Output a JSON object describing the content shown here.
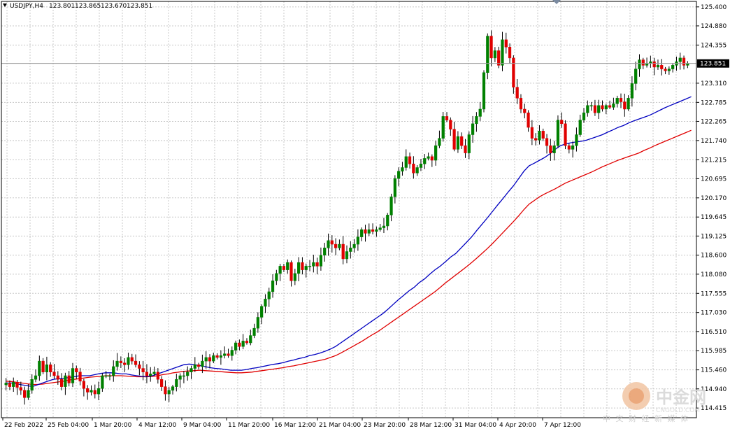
{
  "chart_data": {
    "type": "candlestick",
    "symbol": "USDJPY,H4",
    "ohlc_header": [
      "123.801",
      "123.865",
      "123.670",
      "123.851"
    ],
    "current_price": 123.851,
    "current_price_label": "123.851",
    "ylim": [
      114.15,
      125.55
    ],
    "y_ticks": [
      "125.400",
      "124.880",
      "124.355",
      "123.310",
      "122.785",
      "122.265",
      "121.740",
      "121.215",
      "120.695",
      "120.170",
      "119.645",
      "119.125",
      "118.600",
      "118.080",
      "117.555",
      "117.030",
      "116.510",
      "115.985",
      "115.460",
      "114.940",
      "114.415"
    ],
    "x_ticks": [
      "22 Feb 2022",
      "25 Feb 04:00",
      "1 Mar 20:00",
      "4 Mar 12:00",
      "9 Mar 04:00",
      "11 Mar 20:00",
      "16 Mar 12:00",
      "21 Mar 04:00",
      "23 Mar 20:00",
      "28 Mar 12:00",
      "31 Mar 04:00",
      "4 Apr 20:00",
      "7 Apr 12:00"
    ],
    "closes": [
      115.1,
      115.0,
      115.12,
      114.98,
      114.9,
      114.7,
      114.9,
      115.2,
      115.3,
      115.7,
      115.4,
      115.6,
      115.4,
      115.3,
      115.2,
      115.0,
      115.3,
      115.1,
      115.5,
      115.4,
      115.15,
      114.95,
      114.85,
      114.9,
      114.8,
      114.95,
      115.3,
      115.3,
      115.3,
      115.55,
      115.7,
      115.65,
      115.6,
      115.8,
      115.7,
      115.6,
      115.5,
      115.4,
      115.3,
      115.35,
      115.4,
      115.2,
      115.0,
      114.8,
      114.9,
      115.0,
      115.2,
      115.3,
      115.3,
      115.4,
      115.5,
      115.6,
      115.55,
      115.7,
      115.8,
      115.7,
      115.85,
      115.8,
      115.85,
      115.9,
      115.85,
      116.0,
      116.2,
      116.1,
      116.25,
      116.2,
      116.4,
      116.6,
      116.9,
      117.2,
      117.4,
      117.6,
      117.9,
      118.1,
      118.3,
      118.2,
      118.4,
      117.9,
      118.1,
      118.4,
      118.2,
      118.3,
      118.3,
      118.4,
      118.3,
      118.6,
      118.8,
      119.0,
      118.9,
      118.8,
      118.9,
      118.5,
      118.7,
      118.8,
      118.9,
      119.1,
      119.3,
      119.2,
      119.3,
      119.25,
      119.3,
      119.35,
      119.4,
      119.7,
      120.2,
      120.7,
      120.9,
      121.0,
      121.3,
      121.1,
      120.85,
      121.0,
      121.1,
      121.25,
      121.3,
      121.2,
      121.6,
      121.8,
      122.4,
      122.3,
      122.05,
      121.5,
      121.85,
      121.6,
      121.4,
      121.9,
      122.2,
      122.4,
      122.6,
      123.6,
      124.6,
      124.0,
      124.2,
      123.8,
      124.5,
      124.3,
      124.0,
      123.2,
      122.9,
      122.6,
      122.5,
      122.1,
      121.8,
      121.75,
      122.0,
      121.8,
      121.6,
      121.4,
      121.6,
      122.3,
      122.2,
      121.6,
      121.5,
      121.6,
      121.9,
      122.3,
      122.5,
      122.7,
      122.7,
      122.5,
      122.7,
      122.6,
      122.7,
      122.65,
      122.75,
      122.9,
      122.8,
      122.6,
      122.9,
      123.3,
      123.7,
      123.95,
      123.8,
      123.85,
      123.9,
      123.75,
      123.8,
      123.7,
      123.65,
      123.7,
      123.8,
      123.9,
      124.0,
      123.8,
      123.851
    ],
    "ma_fast": {
      "color": "#0000c0",
      "values": [
        115.1,
        115.1,
        115.08,
        115.05,
        115.03,
        115.0,
        115.05,
        115.1,
        115.15,
        115.2,
        115.22,
        115.23,
        115.25,
        115.27,
        115.3,
        115.3,
        115.3,
        115.33,
        115.36,
        115.38,
        115.38,
        115.37,
        115.35,
        115.35,
        115.32,
        115.3,
        115.28,
        115.28,
        115.3,
        115.35,
        115.4,
        115.45,
        115.5,
        115.55,
        115.6,
        115.62,
        115.6,
        115.58,
        115.55,
        115.52,
        115.5,
        115.49,
        115.47,
        115.45,
        115.45,
        115.45,
        115.47,
        115.5,
        115.52,
        115.55,
        115.58,
        115.61,
        115.63,
        115.66,
        115.7,
        115.73,
        115.77,
        115.8,
        115.85,
        115.88,
        115.92,
        115.97,
        116.03,
        116.1,
        116.2,
        116.3,
        116.4,
        116.5,
        116.6,
        116.7,
        116.8,
        116.9,
        117.0,
        117.12,
        117.25,
        117.38,
        117.5,
        117.62,
        117.72,
        117.85,
        117.95,
        118.08,
        118.2,
        118.3,
        118.42,
        118.55,
        118.65,
        118.8,
        118.95,
        119.1,
        119.28,
        119.45,
        119.62,
        119.8,
        119.98,
        120.15,
        120.33,
        120.5,
        120.7,
        120.9,
        121.05,
        121.12,
        121.2,
        121.28,
        121.38,
        121.5,
        121.6,
        121.65,
        121.68,
        121.7,
        121.72,
        121.75,
        121.8,
        121.85,
        121.9,
        121.97,
        122.03,
        122.1,
        122.15,
        122.22,
        122.28,
        122.33,
        122.38,
        122.43,
        122.5,
        122.57,
        122.64,
        122.7,
        122.76,
        122.82,
        122.88,
        122.94
      ]
    },
    "ma_slow": {
      "color": "#e00000",
      "values": [
        115.15,
        115.14,
        115.12,
        115.1,
        115.08,
        115.06,
        115.06,
        115.07,
        115.09,
        115.11,
        115.13,
        115.15,
        115.18,
        115.2,
        115.22,
        115.24,
        115.26,
        115.27,
        115.28,
        115.3,
        115.3,
        115.3,
        115.3,
        115.29,
        115.28,
        115.27,
        115.27,
        115.27,
        115.28,
        115.3,
        115.33,
        115.35,
        115.38,
        115.4,
        115.42,
        115.43,
        115.44,
        115.45,
        115.44,
        115.43,
        115.42,
        115.41,
        115.4,
        115.39,
        115.38,
        115.38,
        115.39,
        115.4,
        115.42,
        115.44,
        115.46,
        115.48,
        115.5,
        115.52,
        115.55,
        115.57,
        115.6,
        115.63,
        115.66,
        115.69,
        115.72,
        115.75,
        115.8,
        115.85,
        115.92,
        116.0,
        116.08,
        116.16,
        116.24,
        116.33,
        116.42,
        116.5,
        116.6,
        116.7,
        116.8,
        116.9,
        117.0,
        117.1,
        117.2,
        117.3,
        117.4,
        117.5,
        117.6,
        117.72,
        117.84,
        117.95,
        118.06,
        118.17,
        118.28,
        118.4,
        118.52,
        118.65,
        118.78,
        118.92,
        119.07,
        119.22,
        119.37,
        119.52,
        119.68,
        119.85,
        120.0,
        120.1,
        120.2,
        120.28,
        120.35,
        120.42,
        120.5,
        120.58,
        120.64,
        120.7,
        120.76,
        120.82,
        120.88,
        120.95,
        121.02,
        121.08,
        121.14,
        121.2,
        121.25,
        121.3,
        121.35,
        121.4,
        121.47,
        121.53,
        121.6,
        121.66,
        121.72,
        121.78,
        121.84,
        121.9,
        121.96,
        122.02
      ]
    },
    "bull_color": "#008000",
    "bear_color": "#e00000",
    "grid": true,
    "grid_color": "#c8c8c8",
    "bg_color": "#ffffff"
  },
  "watermark": {
    "brand_cn": "中金网",
    "brand_en": "CNGOLD.COM",
    "tagline": "中 文 财 经 新 媒 体"
  }
}
